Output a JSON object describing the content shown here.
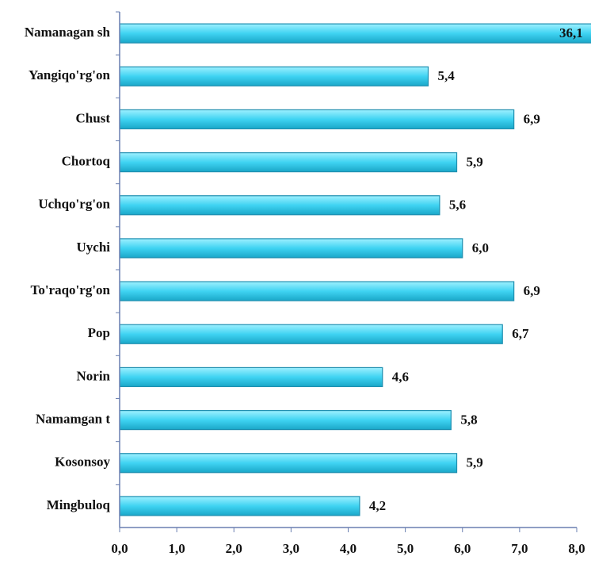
{
  "chart_data": {
    "type": "hbar",
    "categories": [
      "Namanagan sh",
      "Yangiqo'rg'on",
      "Chust",
      "Chortoq",
      "Uchqo'rg'on",
      "Uychi",
      "To'raqo'rg'on",
      "Pop",
      "Norin",
      "Namamgan t",
      "Kosonsoy",
      "Mingbuloq"
    ],
    "values": [
      36.1,
      5.4,
      6.9,
      5.9,
      5.6,
      6.0,
      6.9,
      6.7,
      4.6,
      5.8,
      5.9,
      4.2
    ],
    "value_labels": [
      "36,1",
      "5,4",
      "6,9",
      "5,9",
      "5,6",
      "6,0",
      "6,9",
      "6,7",
      "4,6",
      "5,8",
      "5,9",
      "4,2"
    ],
    "color": "#3fd3f2",
    "xlim": [
      0,
      8
    ],
    "xticks": [
      {
        "value": 0,
        "label": "0,0"
      },
      {
        "value": 1,
        "label": "1,0"
      },
      {
        "value": 2,
        "label": "2,0"
      },
      {
        "value": 3,
        "label": "3,0"
      },
      {
        "value": 4,
        "label": "4,0"
      },
      {
        "value": 5,
        "label": "5,0"
      },
      {
        "value": 6,
        "label": "6,0"
      },
      {
        "value": 7,
        "label": "7,0"
      },
      {
        "value": 8,
        "label": "8,0"
      }
    ],
    "grid": false
  }
}
